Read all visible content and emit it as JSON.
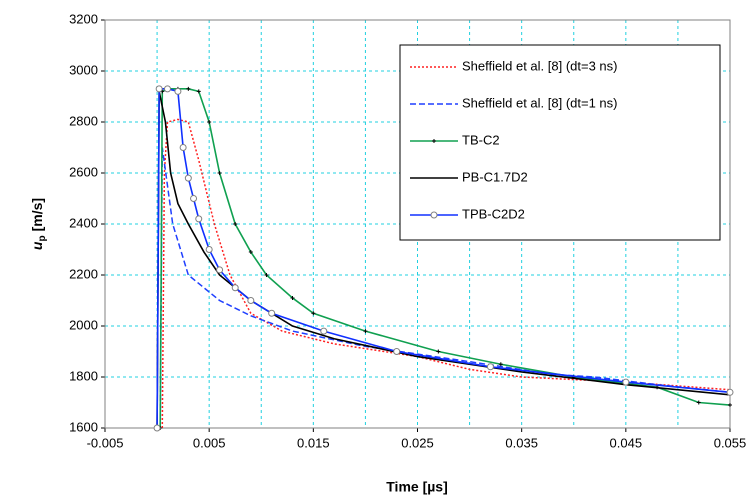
{
  "chart_data": {
    "type": "line",
    "xlabel": "Time [µs]",
    "ylabel": {
      "symbol": "u",
      "subscript": "p",
      "unit": "[m/s]"
    },
    "xlim": [
      -0.005,
      0.055
    ],
    "ylim": [
      1600,
      3200
    ],
    "xticks": [
      -0.005,
      0.005,
      0.015,
      0.025,
      0.035,
      0.045,
      0.055
    ],
    "yticks": [
      1600,
      1800,
      2000,
      2200,
      2400,
      2600,
      2800,
      3000,
      3200
    ],
    "grid": true,
    "legend": "upper right",
    "series": [
      {
        "name": "Sheffield et al. [8] (dt=3 ns)",
        "color": "#ff2020",
        "dash": "dotted",
        "marker": null,
        "x": [
          0.0005,
          0.0007,
          0.001,
          0.002,
          0.003,
          0.004,
          0.0055,
          0.007,
          0.009,
          0.012,
          0.017,
          0.025,
          0.03,
          0.035,
          0.045,
          0.055
        ],
        "values": [
          1600,
          2600,
          2800,
          2810,
          2800,
          2650,
          2400,
          2200,
          2050,
          1980,
          1930,
          1880,
          1830,
          1800,
          1780,
          1750
        ]
      },
      {
        "name": "Sheffield et al. [8] (dt=1 ns)",
        "color": "#1f3fff",
        "dash": "dashed",
        "marker": null,
        "x": [
          0.0003,
          0.0005,
          0.001,
          0.0015,
          0.003,
          0.006,
          0.009,
          0.013,
          0.02,
          0.03,
          0.038,
          0.042,
          0.048,
          0.055
        ],
        "values": [
          1600,
          2700,
          2550,
          2400,
          2200,
          2100,
          2040,
          1980,
          1920,
          1860,
          1810,
          1800,
          1770,
          1740
        ]
      },
      {
        "name": "TB-C2",
        "color": "#10a050",
        "dash": "solid",
        "marker": "plus",
        "x": [
          0.0003,
          0.0005,
          0.001,
          0.002,
          0.003,
          0.004,
          0.005,
          0.006,
          0.0075,
          0.009,
          0.0105,
          0.013,
          0.015,
          0.02,
          0.027,
          0.033,
          0.04,
          0.048,
          0.052,
          0.055
        ],
        "values": [
          1600,
          2920,
          2930,
          2930,
          2930,
          2920,
          2800,
          2600,
          2400,
          2290,
          2200,
          2110,
          2050,
          1980,
          1900,
          1850,
          1800,
          1760,
          1700,
          1690
        ]
      },
      {
        "name": "PB-C1.7D2",
        "color": "#000000",
        "dash": "solid",
        "marker": null,
        "x": [
          0,
          0.0002,
          0.0008,
          0.0013,
          0.002,
          0.003,
          0.0045,
          0.006,
          0.009,
          0.013,
          0.017,
          0.025,
          0.035,
          0.045,
          0.055
        ],
        "values": [
          1600,
          2920,
          2800,
          2600,
          2480,
          2400,
          2290,
          2200,
          2100,
          2000,
          1950,
          1880,
          1820,
          1770,
          1730
        ]
      },
      {
        "name": "TPB-C2D2",
        "color": "#1030ff",
        "dash": "solid",
        "marker": "circle",
        "x": [
          0,
          0.0002,
          0.001,
          0.002,
          0.0025,
          0.003,
          0.0035,
          0.004,
          0.005,
          0.006,
          0.0075,
          0.009,
          0.011,
          0.016,
          0.023,
          0.032,
          0.045,
          0.055
        ],
        "values": [
          1600,
          2930,
          2930,
          2920,
          2700,
          2580,
          2500,
          2420,
          2300,
          2220,
          2150,
          2100,
          2050,
          1980,
          1900,
          1840,
          1780,
          1740
        ]
      }
    ]
  }
}
